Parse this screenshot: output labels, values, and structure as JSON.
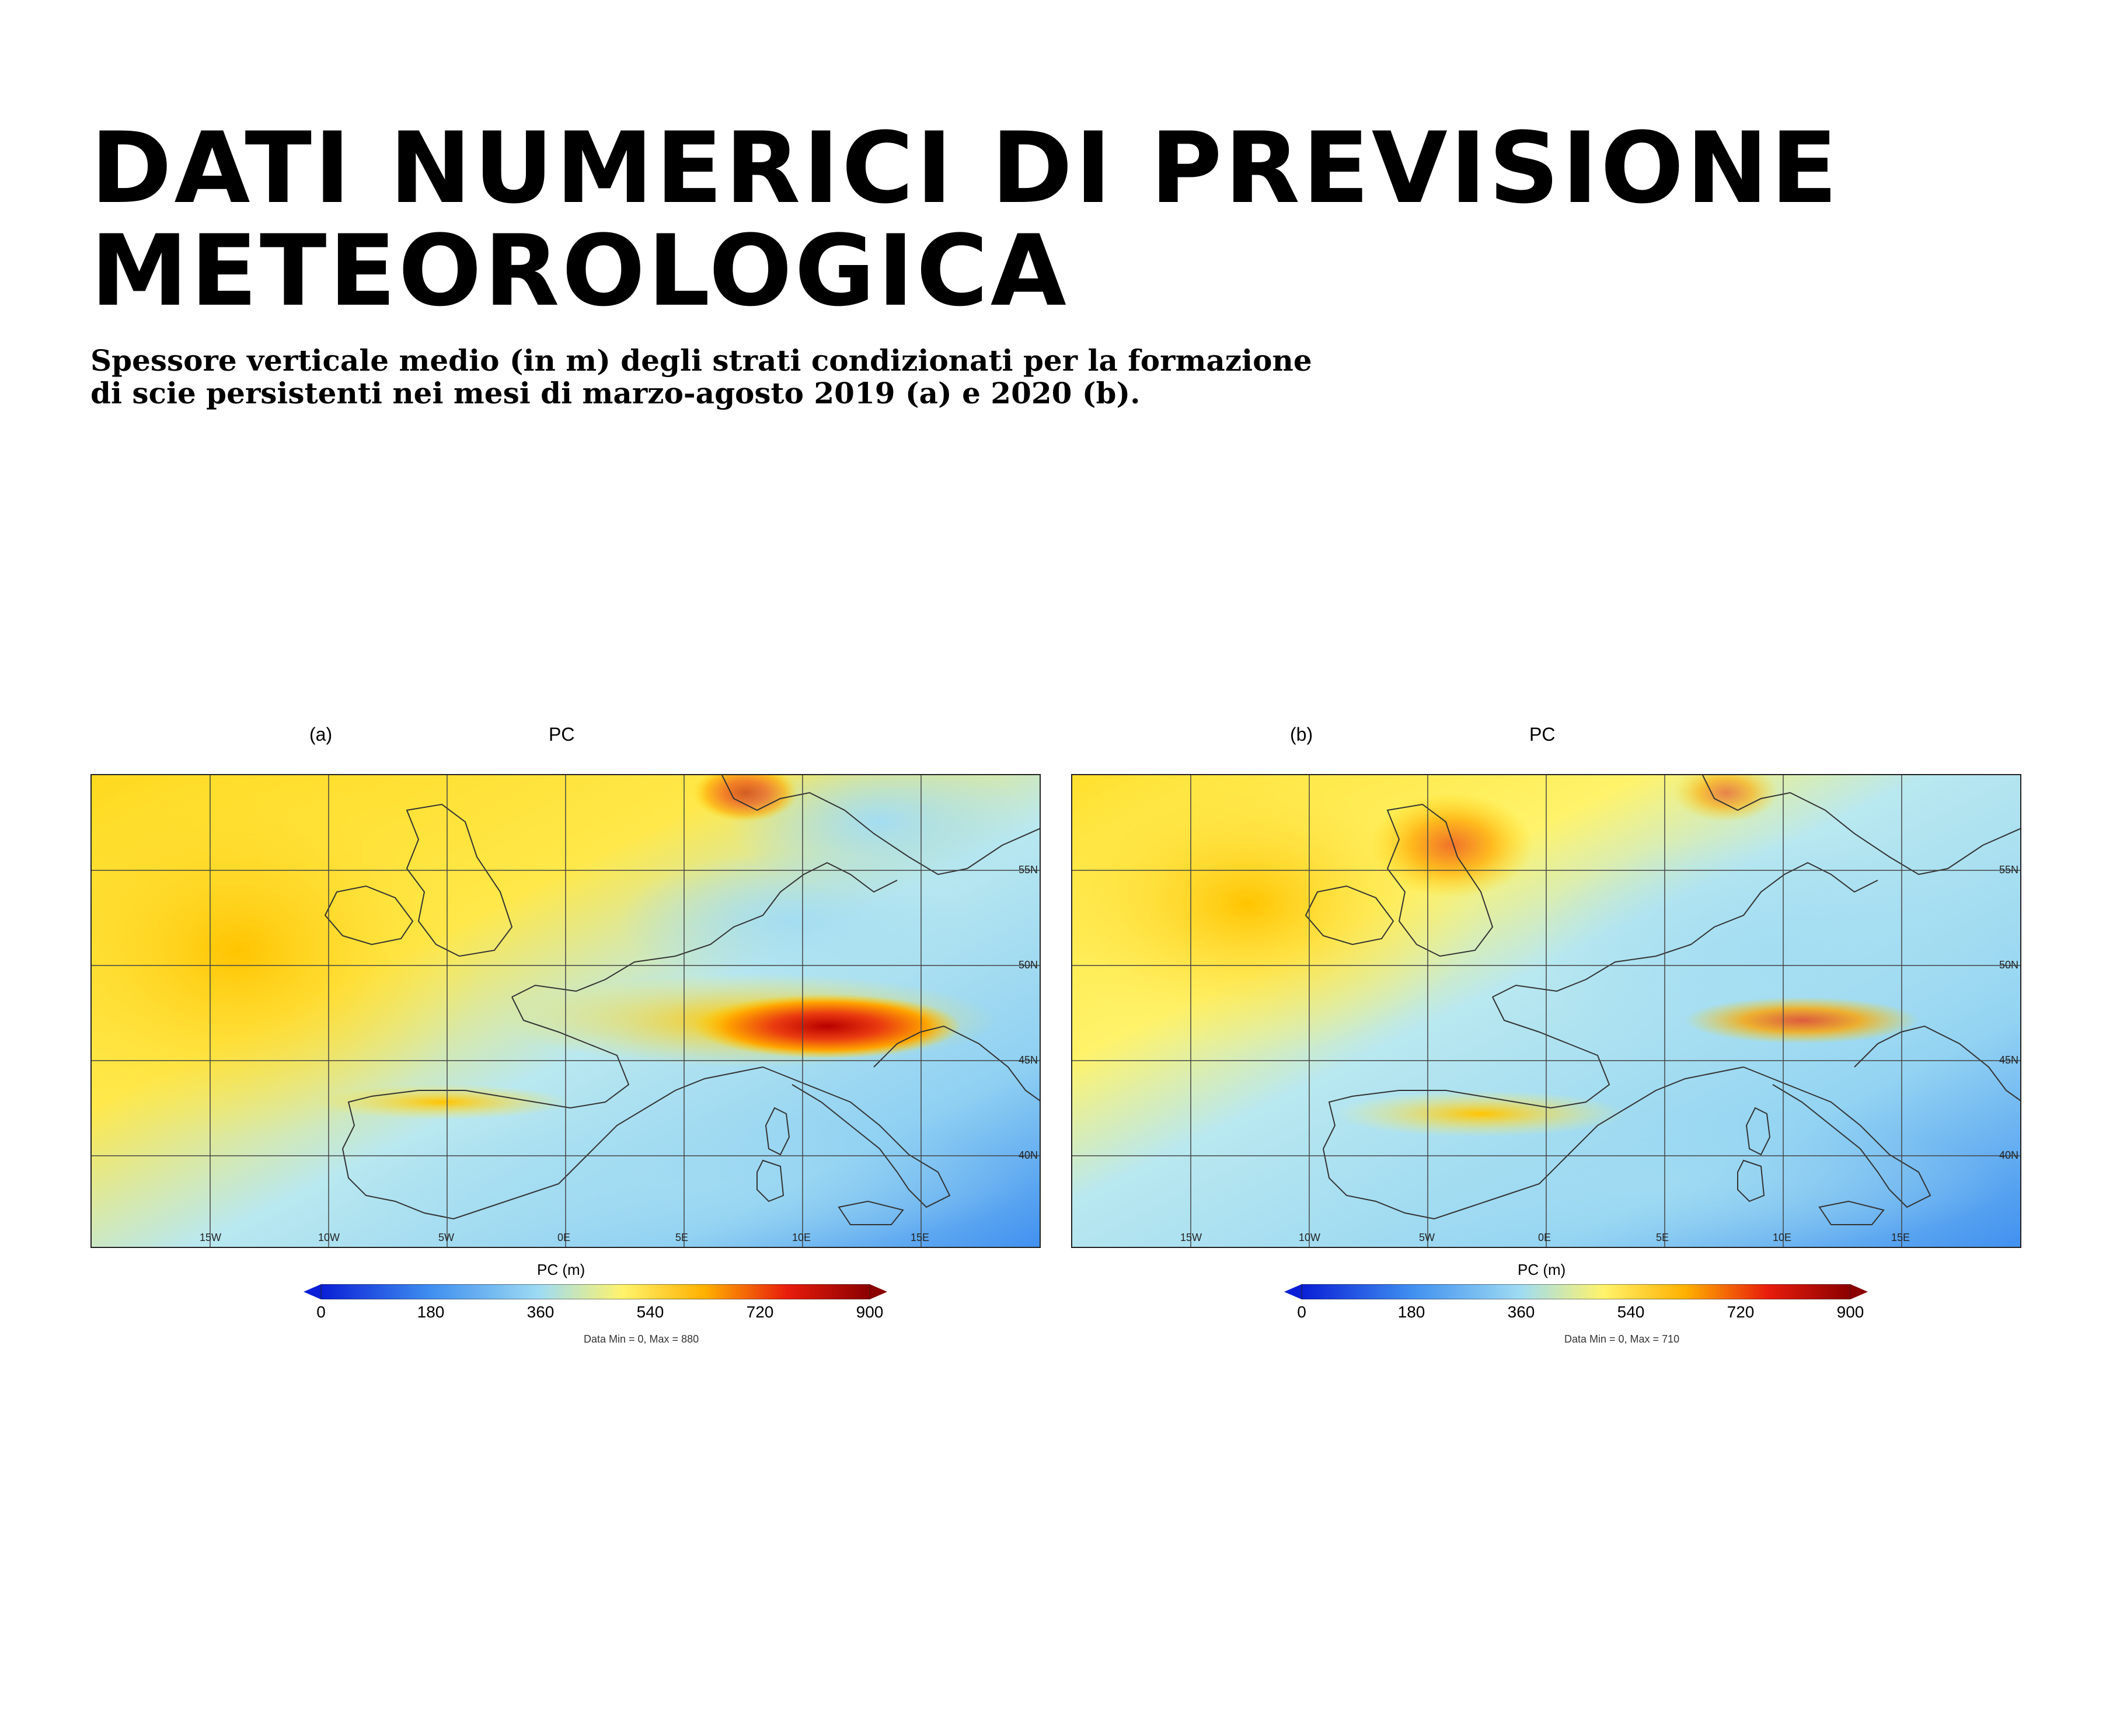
{
  "header": {
    "title_line1": "DATI NUMERICI DI PREVISIONE",
    "title_line2": "METEOROLOGICA",
    "subtitle_line1": "Spessore verticale medio (in m) degli strati condizionati per la formazione",
    "subtitle_line2": "di scie persistenti nei mesi di marzo-agosto 2019 (a) e 2020 (b)."
  },
  "map_common": {
    "lon_labels": [
      "15W",
      "10W",
      "5W",
      "0E",
      "5E",
      "10E",
      "15E"
    ],
    "lat_labels": [
      "55N",
      "50N",
      "45N",
      "40N"
    ],
    "colorbar_title": "PC (m)",
    "colorbar_ticks": [
      "0",
      "180",
      "360",
      "540",
      "720",
      "900"
    ],
    "colormap": [
      "#0a1fd6",
      "#3f8ff0",
      "#9fdcf2",
      "#fff36b",
      "#ffb000",
      "#e81c0c",
      "#8b0000"
    ]
  },
  "panels": [
    {
      "label": "(a)",
      "variable": "PC",
      "data_min_max": "Data Min = 0, Max = 880"
    },
    {
      "label": "(b)",
      "variable": "PC",
      "data_min_max": "Data Min = 0, Max = 710"
    }
  ]
}
